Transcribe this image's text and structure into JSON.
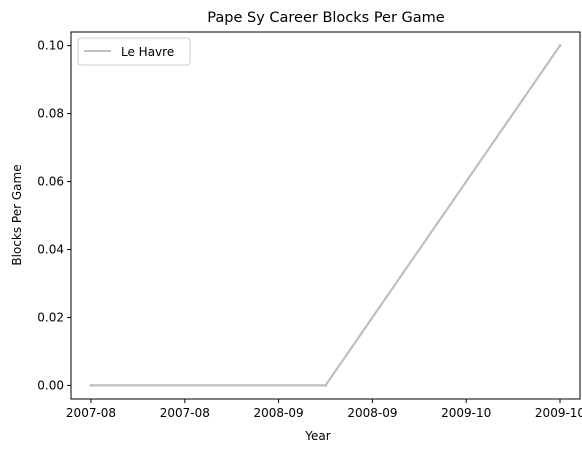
{
  "chart_data": {
    "type": "line",
    "title": "Pape Sy Career Blocks Per Game",
    "xlabel": "Year",
    "ylabel": "Blocks Per Game",
    "x": [
      "2007-08",
      "2008-09",
      "2009-10"
    ],
    "x_tick_labels": [
      "2007-08",
      "2007-08",
      "2008-09",
      "2008-09",
      "2009-10",
      "2009-10"
    ],
    "y_ticks": [
      "0.00",
      "0.02",
      "0.04",
      "0.06",
      "0.08",
      "0.10"
    ],
    "ylim": [
      -0.004,
      0.104
    ],
    "grid": false,
    "legend": "upper-left",
    "series": [
      {
        "name": "Le Havre",
        "color": "#bfbfbf",
        "values": [
          0,
          0,
          0.1
        ]
      }
    ]
  }
}
